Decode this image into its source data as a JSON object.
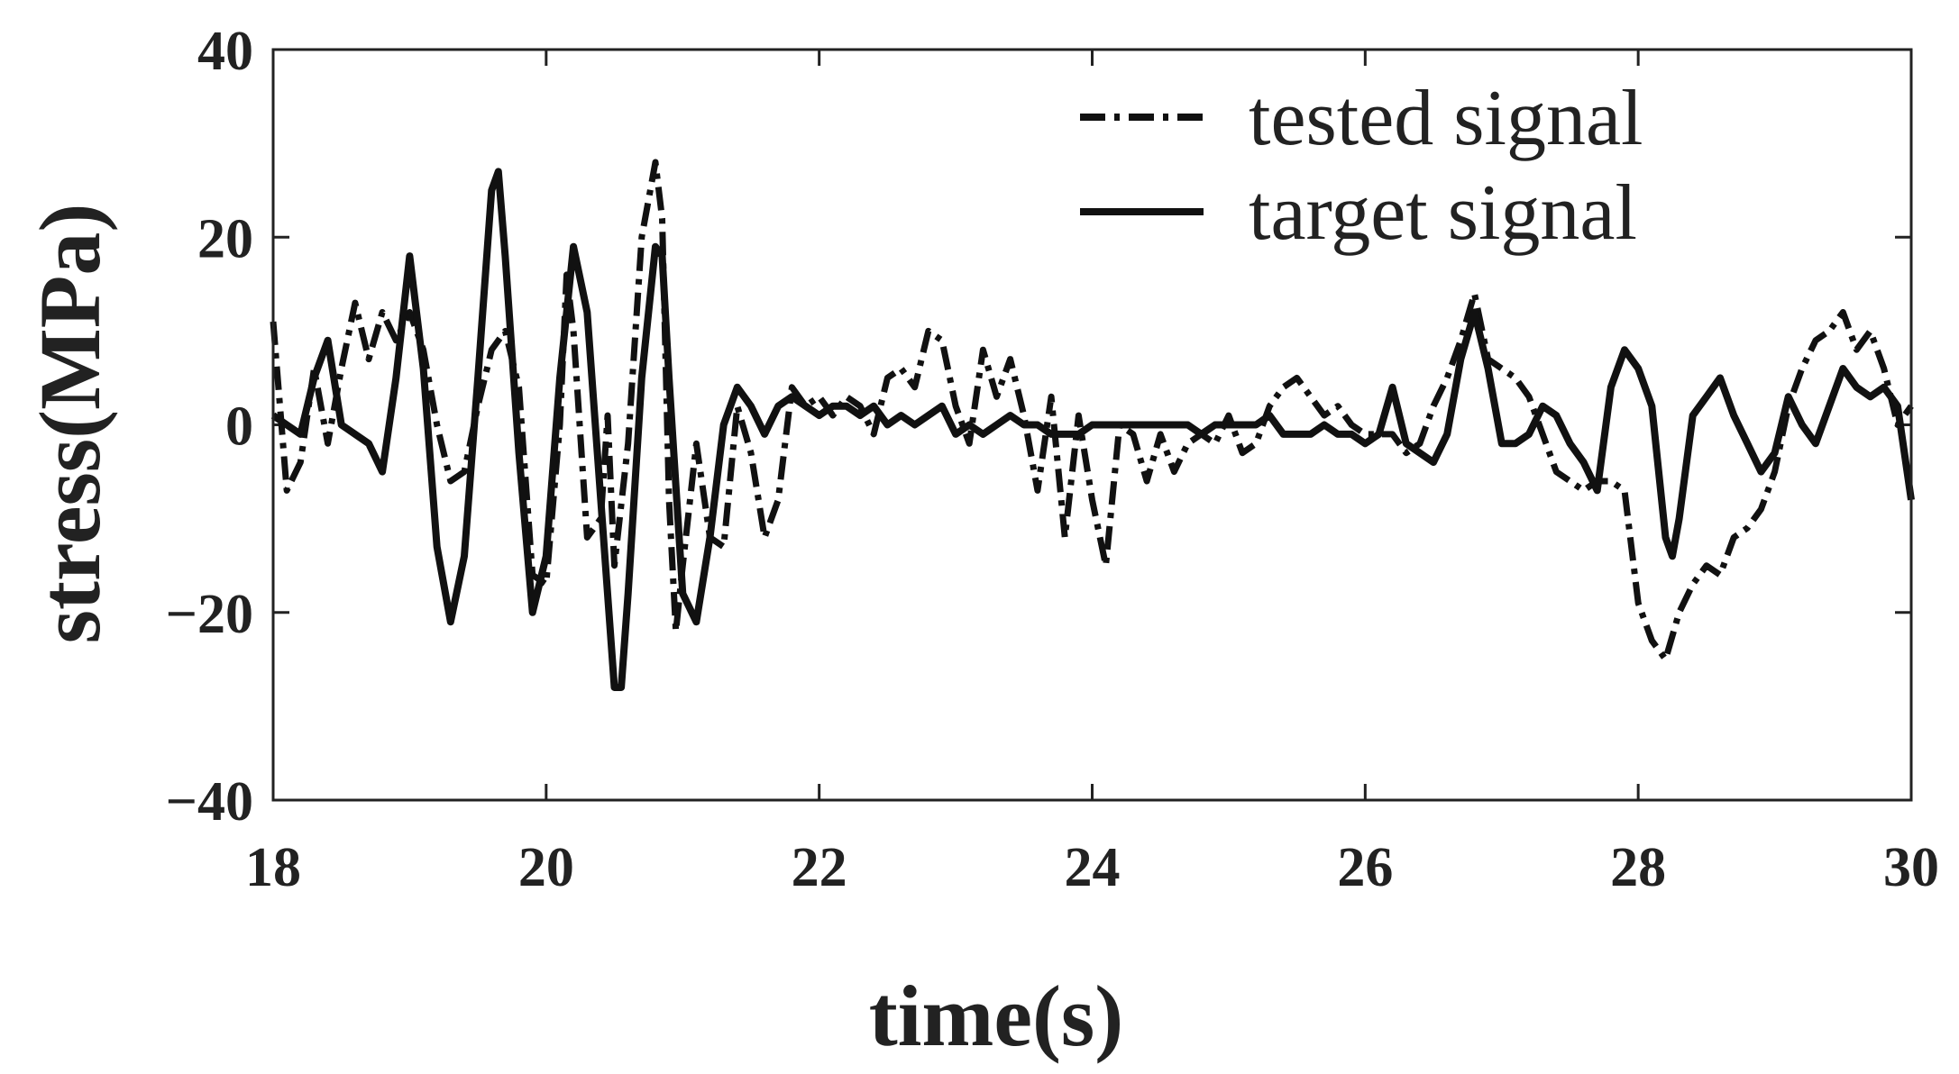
{
  "chart_data": {
    "type": "line",
    "title": "",
    "xlabel": "time(s)",
    "ylabel": "stress(MPa)",
    "xlim": [
      18,
      30
    ],
    "ylim": [
      -40,
      40
    ],
    "xticks": [
      18,
      20,
      22,
      24,
      26,
      28,
      30
    ],
    "yticks": [
      40,
      20,
      0,
      -20,
      -40
    ],
    "xtick_labels": [
      "18",
      "20",
      "22",
      "24",
      "26",
      "28",
      "30"
    ],
    "ytick_labels": [
      "40",
      "20",
      "0",
      "−20",
      "−40"
    ],
    "grid": false,
    "legend_position": "top-right",
    "series": [
      {
        "name": "tested signal",
        "style": "dash-dot",
        "color": "#111111",
        "points": [
          [
            18.0,
            11
          ],
          [
            18.1,
            -7
          ],
          [
            18.2,
            -4
          ],
          [
            18.3,
            6
          ],
          [
            18.4,
            -2
          ],
          [
            18.5,
            6
          ],
          [
            18.6,
            13
          ],
          [
            18.7,
            7
          ],
          [
            18.8,
            12
          ],
          [
            18.9,
            9
          ],
          [
            19.0,
            12
          ],
          [
            19.1,
            8
          ],
          [
            19.2,
            0
          ],
          [
            19.3,
            -6
          ],
          [
            19.4,
            -5
          ],
          [
            19.5,
            2
          ],
          [
            19.6,
            8
          ],
          [
            19.7,
            10
          ],
          [
            19.8,
            4
          ],
          [
            19.9,
            -16
          ],
          [
            20.0,
            -17
          ],
          [
            20.1,
            0
          ],
          [
            20.15,
            16
          ],
          [
            20.2,
            10
          ],
          [
            20.3,
            -12
          ],
          [
            20.4,
            -10
          ],
          [
            20.45,
            1
          ],
          [
            20.5,
            -15
          ],
          [
            20.6,
            -2
          ],
          [
            20.7,
            20
          ],
          [
            20.8,
            28
          ],
          [
            20.85,
            22
          ],
          [
            20.9,
            -8
          ],
          [
            20.95,
            -22
          ],
          [
            21.0,
            -15
          ],
          [
            21.1,
            -2
          ],
          [
            21.2,
            -12
          ],
          [
            21.3,
            -13
          ],
          [
            21.4,
            2
          ],
          [
            21.5,
            -3
          ],
          [
            21.6,
            -12
          ],
          [
            21.7,
            -8
          ],
          [
            21.8,
            4
          ],
          [
            21.9,
            2
          ],
          [
            22.0,
            3
          ],
          [
            22.1,
            1
          ],
          [
            22.2,
            3
          ],
          [
            22.3,
            2
          ],
          [
            22.4,
            -1
          ],
          [
            22.5,
            5
          ],
          [
            22.6,
            6
          ],
          [
            22.7,
            4
          ],
          [
            22.8,
            10
          ],
          [
            22.9,
            9
          ],
          [
            23.0,
            2
          ],
          [
            23.1,
            -2
          ],
          [
            23.2,
            8
          ],
          [
            23.3,
            3
          ],
          [
            23.4,
            7
          ],
          [
            23.5,
            1
          ],
          [
            23.6,
            -7
          ],
          [
            23.7,
            3
          ],
          [
            23.8,
            -12
          ],
          [
            23.9,
            1
          ],
          [
            24.0,
            -8
          ],
          [
            24.1,
            -15
          ],
          [
            24.2,
            0
          ],
          [
            24.3,
            -1
          ],
          [
            24.4,
            -6
          ],
          [
            24.5,
            -1
          ],
          [
            24.6,
            -5
          ],
          [
            24.7,
            -2
          ],
          [
            24.8,
            -1
          ],
          [
            24.9,
            -2
          ],
          [
            25.0,
            1
          ],
          [
            25.1,
            -3
          ],
          [
            25.2,
            -2
          ],
          [
            25.3,
            2
          ],
          [
            25.4,
            4
          ],
          [
            25.5,
            5
          ],
          [
            25.6,
            3
          ],
          [
            25.7,
            1
          ],
          [
            25.8,
            2
          ],
          [
            25.9,
            0
          ],
          [
            26.0,
            -1
          ],
          [
            26.1,
            -1
          ],
          [
            26.2,
            -1
          ],
          [
            26.3,
            -3
          ],
          [
            26.4,
            -2
          ],
          [
            26.5,
            2
          ],
          [
            26.6,
            5
          ],
          [
            26.7,
            9
          ],
          [
            26.8,
            14
          ],
          [
            26.9,
            7
          ],
          [
            27.0,
            6
          ],
          [
            27.1,
            5
          ],
          [
            27.2,
            3
          ],
          [
            27.3,
            -1
          ],
          [
            27.4,
            -5
          ],
          [
            27.5,
            -6
          ],
          [
            27.6,
            -7
          ],
          [
            27.7,
            -6
          ],
          [
            27.8,
            -6
          ],
          [
            27.9,
            -7
          ],
          [
            28.0,
            -19
          ],
          [
            28.1,
            -23
          ],
          [
            28.2,
            -25
          ],
          [
            28.3,
            -20
          ],
          [
            28.4,
            -17
          ],
          [
            28.5,
            -15
          ],
          [
            28.6,
            -16
          ],
          [
            28.7,
            -12
          ],
          [
            28.8,
            -11
          ],
          [
            28.9,
            -9
          ],
          [
            29.0,
            -5
          ],
          [
            29.1,
            2
          ],
          [
            29.2,
            6
          ],
          [
            29.3,
            9
          ],
          [
            29.4,
            10
          ],
          [
            29.5,
            12
          ],
          [
            29.6,
            8
          ],
          [
            29.7,
            10
          ],
          [
            29.8,
            6
          ],
          [
            29.9,
            0
          ],
          [
            30.0,
            2
          ]
        ]
      },
      {
        "name": "target signal",
        "style": "solid",
        "color": "#111111",
        "points": [
          [
            18.0,
            1
          ],
          [
            18.1,
            0
          ],
          [
            18.2,
            -1
          ],
          [
            18.3,
            5
          ],
          [
            18.4,
            9
          ],
          [
            18.5,
            0
          ],
          [
            18.6,
            -1
          ],
          [
            18.7,
            -2
          ],
          [
            18.8,
            -5
          ],
          [
            18.9,
            5
          ],
          [
            19.0,
            18
          ],
          [
            19.1,
            6
          ],
          [
            19.2,
            -13
          ],
          [
            19.3,
            -21
          ],
          [
            19.4,
            -14
          ],
          [
            19.5,
            5
          ],
          [
            19.6,
            25
          ],
          [
            19.65,
            27
          ],
          [
            19.7,
            18
          ],
          [
            19.8,
            -3
          ],
          [
            19.9,
            -20
          ],
          [
            20.0,
            -14
          ],
          [
            20.1,
            5
          ],
          [
            20.2,
            19
          ],
          [
            20.3,
            12
          ],
          [
            20.4,
            -8
          ],
          [
            20.5,
            -28
          ],
          [
            20.55,
            -28
          ],
          [
            20.6,
            -18
          ],
          [
            20.7,
            5
          ],
          [
            20.8,
            19
          ],
          [
            20.85,
            18
          ],
          [
            20.9,
            5
          ],
          [
            21.0,
            -18
          ],
          [
            21.1,
            -21
          ],
          [
            21.2,
            -12
          ],
          [
            21.3,
            0
          ],
          [
            21.4,
            4
          ],
          [
            21.5,
            2
          ],
          [
            21.6,
            -1
          ],
          [
            21.7,
            2
          ],
          [
            21.8,
            3
          ],
          [
            21.9,
            2
          ],
          [
            22.0,
            1
          ],
          [
            22.1,
            2
          ],
          [
            22.2,
            2
          ],
          [
            22.3,
            1
          ],
          [
            22.4,
            2
          ],
          [
            22.5,
            0
          ],
          [
            22.6,
            1
          ],
          [
            22.7,
            0
          ],
          [
            22.8,
            1
          ],
          [
            22.9,
            2
          ],
          [
            23.0,
            -1
          ],
          [
            23.1,
            0
          ],
          [
            23.2,
            -1
          ],
          [
            23.3,
            0
          ],
          [
            23.4,
            1
          ],
          [
            23.5,
            0
          ],
          [
            23.6,
            0
          ],
          [
            23.7,
            -1
          ],
          [
            23.8,
            -1
          ],
          [
            23.9,
            -1
          ],
          [
            24.0,
            0
          ],
          [
            24.1,
            0
          ],
          [
            24.2,
            0
          ],
          [
            24.3,
            0
          ],
          [
            24.4,
            0
          ],
          [
            24.5,
            0
          ],
          [
            24.6,
            0
          ],
          [
            24.7,
            0
          ],
          [
            24.8,
            -1
          ],
          [
            24.9,
            0
          ],
          [
            25.0,
            0
          ],
          [
            25.1,
            0
          ],
          [
            25.2,
            0
          ],
          [
            25.3,
            1
          ],
          [
            25.4,
            -1
          ],
          [
            25.5,
            -1
          ],
          [
            25.6,
            -1
          ],
          [
            25.7,
            0
          ],
          [
            25.8,
            -1
          ],
          [
            25.9,
            -1
          ],
          [
            26.0,
            -2
          ],
          [
            26.1,
            -1
          ],
          [
            26.2,
            4
          ],
          [
            26.3,
            -2
          ],
          [
            26.4,
            -3
          ],
          [
            26.5,
            -4
          ],
          [
            26.6,
            -1
          ],
          [
            26.7,
            7
          ],
          [
            26.8,
            12
          ],
          [
            26.9,
            6
          ],
          [
            27.0,
            -2
          ],
          [
            27.1,
            -2
          ],
          [
            27.2,
            -1
          ],
          [
            27.3,
            2
          ],
          [
            27.4,
            1
          ],
          [
            27.5,
            -2
          ],
          [
            27.6,
            -4
          ],
          [
            27.7,
            -7
          ],
          [
            27.8,
            4
          ],
          [
            27.9,
            8
          ],
          [
            28.0,
            6
          ],
          [
            28.1,
            2
          ],
          [
            28.2,
            -12
          ],
          [
            28.25,
            -14
          ],
          [
            28.3,
            -10
          ],
          [
            28.4,
            1
          ],
          [
            28.5,
            3
          ],
          [
            28.6,
            5
          ],
          [
            28.7,
            1
          ],
          [
            28.8,
            -2
          ],
          [
            28.9,
            -5
          ],
          [
            29.0,
            -3
          ],
          [
            29.1,
            3
          ],
          [
            29.2,
            0
          ],
          [
            29.3,
            -2
          ],
          [
            29.4,
            2
          ],
          [
            29.5,
            6
          ],
          [
            29.6,
            4
          ],
          [
            29.7,
            3
          ],
          [
            29.8,
            4
          ],
          [
            29.9,
            2
          ],
          [
            30.0,
            -8
          ]
        ]
      }
    ]
  },
  "legend": {
    "entries": [
      "tested signal",
      "target signal"
    ]
  }
}
